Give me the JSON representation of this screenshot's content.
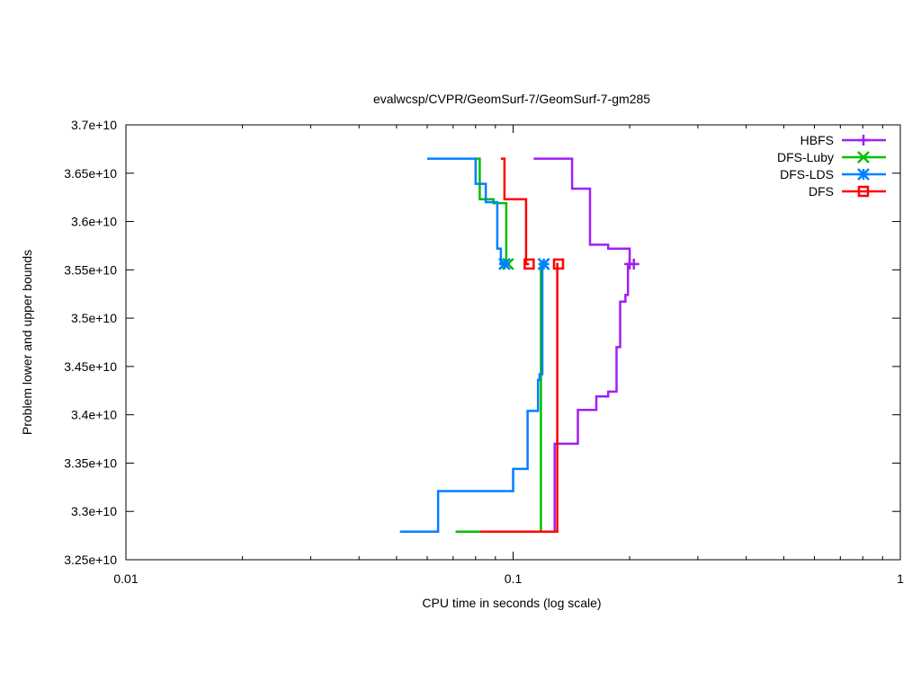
{
  "chart_data": {
    "type": "line",
    "title": "evalwcsp/CVPR/GeomSurf-7/GeomSurf-7-gm285",
    "xlabel": "CPU time in seconds (log scale)",
    "ylabel": "Problem lower and upper bounds",
    "xscale": "log",
    "xlim": [
      0.01,
      1
    ],
    "ylim": [
      32500000000,
      37000000000
    ],
    "x_ticks": [
      {
        "value": 0.01,
        "label": "0.01"
      },
      {
        "value": 0.1,
        "label": "0.1"
      },
      {
        "value": 1,
        "label": "1"
      }
    ],
    "y_ticks": [
      {
        "value": 32500000000,
        "label": "3.25e+10"
      },
      {
        "value": 33000000000,
        "label": "3.3e+10"
      },
      {
        "value": 33500000000,
        "label": "3.35e+10"
      },
      {
        "value": 34000000000,
        "label": "3.4e+10"
      },
      {
        "value": 34500000000,
        "label": "3.45e+10"
      },
      {
        "value": 35000000000,
        "label": "3.5e+10"
      },
      {
        "value": 35500000000,
        "label": "3.55e+10"
      },
      {
        "value": 36000000000,
        "label": "3.6e+10"
      },
      {
        "value": 36500000000,
        "label": "3.65e+10"
      },
      {
        "value": 37000000000,
        "label": "3.7e+10"
      }
    ],
    "grid": false,
    "legend_position": "top-right",
    "series": [
      {
        "name": "HBFS",
        "color": "#a020f0",
        "marker": "plus",
        "upper": [
          [
            0.113,
            36650000000
          ],
          [
            0.142,
            36650000000
          ],
          [
            0.142,
            36340000000
          ],
          [
            0.158,
            36340000000
          ],
          [
            0.158,
            35760000000
          ],
          [
            0.176,
            35760000000
          ],
          [
            0.176,
            35720000000
          ],
          [
            0.2,
            35720000000
          ],
          [
            0.2,
            35560000000
          ]
        ],
        "lower": [
          [
            0.123,
            32790000000
          ],
          [
            0.128,
            32790000000
          ],
          [
            0.128,
            33700000000
          ],
          [
            0.147,
            33700000000
          ],
          [
            0.147,
            34050000000
          ],
          [
            0.164,
            34050000000
          ],
          [
            0.164,
            34190000000
          ],
          [
            0.176,
            34190000000
          ],
          [
            0.176,
            34240000000
          ],
          [
            0.185,
            34240000000
          ],
          [
            0.185,
            34700000000
          ],
          [
            0.189,
            34700000000
          ],
          [
            0.189,
            35170000000
          ],
          [
            0.195,
            35170000000
          ],
          [
            0.195,
            35240000000
          ],
          [
            0.198,
            35240000000
          ],
          [
            0.198,
            35560000000
          ],
          [
            0.205,
            35560000000
          ]
        ]
      },
      {
        "name": "DFS-Luby",
        "color": "#00c000",
        "marker": "x",
        "upper": [
          [
            0.08,
            36650000000
          ],
          [
            0.082,
            36650000000
          ],
          [
            0.082,
            36230000000
          ],
          [
            0.089,
            36230000000
          ],
          [
            0.089,
            36190000000
          ],
          [
            0.096,
            36190000000
          ],
          [
            0.096,
            35560000000
          ],
          [
            0.097,
            35560000000
          ]
        ],
        "lower": [
          [
            0.071,
            32790000000
          ],
          [
            0.118,
            32790000000
          ],
          [
            0.118,
            35560000000
          ],
          [
            0.12,
            35560000000
          ]
        ]
      },
      {
        "name": "DFS-LDS",
        "color": "#0080ff",
        "marker": "star",
        "upper": [
          [
            0.06,
            36650000000
          ],
          [
            0.08,
            36650000000
          ],
          [
            0.08,
            36390000000
          ],
          [
            0.085,
            36390000000
          ],
          [
            0.085,
            36200000000
          ],
          [
            0.091,
            36200000000
          ],
          [
            0.091,
            35720000000
          ],
          [
            0.093,
            35720000000
          ],
          [
            0.093,
            35560000000
          ],
          [
            0.095,
            35560000000
          ]
        ],
        "lower": [
          [
            0.051,
            32790000000
          ],
          [
            0.064,
            32790000000
          ],
          [
            0.064,
            33210000000
          ],
          [
            0.1,
            33210000000
          ],
          [
            0.1,
            33440000000
          ],
          [
            0.109,
            33440000000
          ],
          [
            0.109,
            34040000000
          ],
          [
            0.116,
            34040000000
          ],
          [
            0.116,
            34360000000
          ],
          [
            0.117,
            34360000000
          ],
          [
            0.117,
            34420000000
          ],
          [
            0.119,
            34420000000
          ],
          [
            0.119,
            35560000000
          ],
          [
            0.12,
            35560000000
          ]
        ]
      },
      {
        "name": "DFS",
        "color": "#ff0000",
        "marker": "square",
        "upper": [
          [
            0.093,
            36650000000
          ],
          [
            0.095,
            36650000000
          ],
          [
            0.095,
            36230000000
          ],
          [
            0.108,
            36230000000
          ],
          [
            0.108,
            35560000000
          ],
          [
            0.11,
            35560000000
          ]
        ],
        "lower": [
          [
            0.082,
            32790000000
          ],
          [
            0.13,
            32790000000
          ],
          [
            0.13,
            35560000000
          ],
          [
            0.131,
            35560000000
          ]
        ]
      }
    ]
  }
}
